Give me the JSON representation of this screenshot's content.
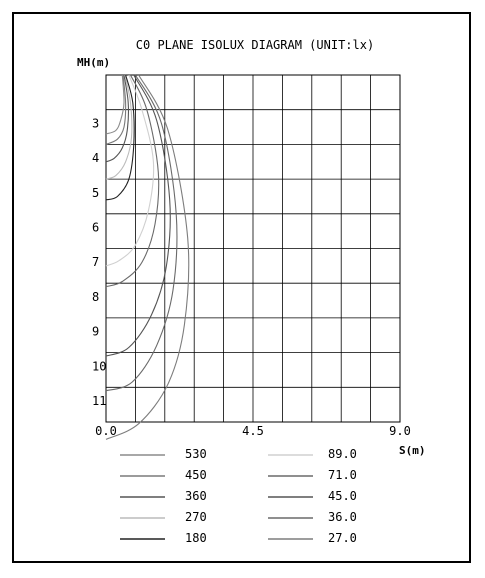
{
  "chart_data": {
    "type": "line",
    "title": "C0 PLANE ISOLUX DIAGRAM (UNIT:lx)",
    "xlabel": "S(m)",
    "ylabel": "MH(m)",
    "xlim": [
      0,
      9.0
    ],
    "ylim": [
      1,
      11
    ],
    "y_inverted": true,
    "grid": true,
    "x_tick_labels": [
      {
        "value": 0,
        "label": "0.0"
      },
      {
        "value": 4.5,
        "label": "4.5"
      },
      {
        "value": 9,
        "label": "9.0"
      }
    ],
    "y_tick_labels": [
      {
        "value": 3,
        "label": "3"
      },
      {
        "value": 4,
        "label": "4"
      },
      {
        "value": 5,
        "label": "5"
      },
      {
        "value": 6,
        "label": "6"
      },
      {
        "value": 7,
        "label": "7"
      },
      {
        "value": 8,
        "label": "8"
      },
      {
        "value": 9,
        "label": "9"
      },
      {
        "value": 10,
        "label": "10"
      },
      {
        "value": 11,
        "label": "11"
      }
    ],
    "legend_position": "bottom",
    "series": [
      {
        "name": "530",
        "color": "#8c8c8c",
        "x": [
          0.5,
          0.55,
          0.45,
          0.3,
          0.0
        ],
        "y": [
          1.0,
          1.8,
          2.3,
          2.6,
          2.7
        ]
      },
      {
        "name": "450",
        "color": "#7a7a7a",
        "x": [
          0.52,
          0.6,
          0.55,
          0.35,
          0.0
        ],
        "y": [
          1.0,
          1.8,
          2.5,
          2.85,
          3.0
        ]
      },
      {
        "name": "360",
        "color": "#555555",
        "x": [
          0.55,
          0.68,
          0.65,
          0.5,
          0.25,
          0.0
        ],
        "y": [
          1.0,
          1.8,
          2.6,
          3.1,
          3.4,
          3.5
        ]
      },
      {
        "name": "270",
        "color": "#bbbbbb",
        "x": [
          0.58,
          0.75,
          0.78,
          0.6,
          0.3,
          0.0
        ],
        "y": [
          1.0,
          1.8,
          2.8,
          3.5,
          3.9,
          4.0
        ]
      },
      {
        "name": "180",
        "color": "#222222",
        "x": [
          0.6,
          0.82,
          0.85,
          0.7,
          0.35,
          0.0
        ],
        "y": [
          1.0,
          1.8,
          3.0,
          4.0,
          4.5,
          4.6
        ]
      },
      {
        "name": "89.0",
        "color": "#d0d0d0",
        "x": [
          0.7,
          1.1,
          1.45,
          1.3,
          0.9,
          0.4,
          0.0
        ],
        "y": [
          1.0,
          2.0,
          3.5,
          4.9,
          5.9,
          6.35,
          6.5
        ]
      },
      {
        "name": "71.0",
        "color": "#6a6a6a",
        "x": [
          0.75,
          1.25,
          1.6,
          1.5,
          1.1,
          0.5,
          0.0
        ],
        "y": [
          1.0,
          2.0,
          3.8,
          5.3,
          6.4,
          6.95,
          7.1
        ]
      },
      {
        "name": "45.0",
        "color": "#555555",
        "x": [
          0.85,
          1.55,
          1.95,
          1.85,
          1.4,
          0.7,
          0.0
        ],
        "y": [
          1.0,
          2.3,
          4.6,
          6.5,
          7.9,
          8.85,
          9.1
        ]
      },
      {
        "name": "36.0",
        "color": "#6a6a6a",
        "x": [
          0.9,
          1.7,
          2.15,
          2.05,
          1.55,
          0.8,
          0.0
        ],
        "y": [
          1.0,
          2.4,
          5.0,
          7.2,
          8.8,
          9.85,
          10.1
        ]
      },
      {
        "name": "27.0",
        "color": "#7d7d7d",
        "x": [
          1.0,
          1.9,
          2.5,
          2.4,
          1.9,
          1.0,
          0.0
        ],
        "y": [
          1.0,
          2.6,
          5.7,
          8.2,
          9.9,
          11.05,
          11.5
        ]
      }
    ]
  }
}
